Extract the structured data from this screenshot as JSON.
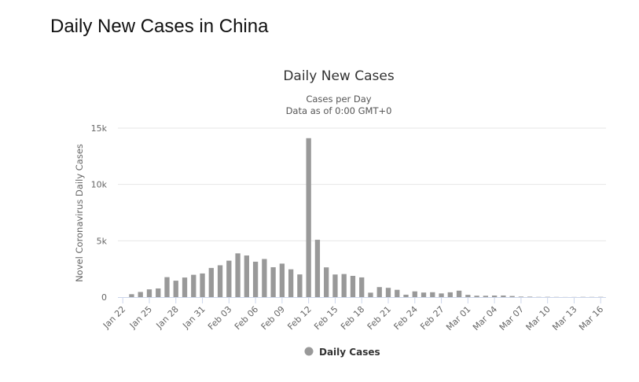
{
  "page": {
    "heading": "Daily New Cases in China"
  },
  "chart_data": {
    "type": "bar",
    "title": "Daily New Cases",
    "subtitle": [
      "Cases per Day",
      "Data as of 0:00 GMT+0"
    ],
    "xlabel": "",
    "ylabel": "Novel Coronavirus Daily Cases",
    "ylim": [
      0,
      15000
    ],
    "yticks": [
      0,
      5000,
      10000,
      15000
    ],
    "ytick_labels": [
      "0",
      "5k",
      "10k",
      "15k"
    ],
    "grid": true,
    "legend_position": "bottom-center",
    "bar_color": "#999999",
    "categories": [
      "Jan 22",
      "Jan 23",
      "Jan 24",
      "Jan 25",
      "Jan 26",
      "Jan 27",
      "Jan 28",
      "Jan 29",
      "Jan 30",
      "Jan 31",
      "Feb 01",
      "Feb 02",
      "Feb 03",
      "Feb 04",
      "Feb 05",
      "Feb 06",
      "Feb 07",
      "Feb 08",
      "Feb 09",
      "Feb 10",
      "Feb 11",
      "Feb 12",
      "Feb 13",
      "Feb 14",
      "Feb 15",
      "Feb 16",
      "Feb 17",
      "Feb 18",
      "Feb 19",
      "Feb 20",
      "Feb 21",
      "Feb 22",
      "Feb 23",
      "Feb 24",
      "Feb 25",
      "Feb 26",
      "Feb 27",
      "Feb 28",
      "Feb 29",
      "Mar 01",
      "Mar 02",
      "Mar 03",
      "Mar 04",
      "Mar 05",
      "Mar 06",
      "Mar 07",
      "Mar 08",
      "Mar 09",
      "Mar 10",
      "Mar 11",
      "Mar 12",
      "Mar 13",
      "Mar 14",
      "Mar 15",
      "Mar 16"
    ],
    "xtick_labels": [
      "Jan 22",
      "Jan 25",
      "Jan 28",
      "Jan 31",
      "Feb 03",
      "Feb 06",
      "Feb 09",
      "Feb 12",
      "Feb 15",
      "Feb 18",
      "Feb 21",
      "Feb 24",
      "Feb 27",
      "Mar 01",
      "Mar 04",
      "Mar 07",
      "Mar 10",
      "Mar 13",
      "Mar 16"
    ],
    "series": [
      {
        "name": "Daily Cases",
        "values": [
          0,
          259,
          457,
          688,
          769,
          1771,
          1459,
          1737,
          1981,
          2099,
          2589,
          2825,
          3235,
          3884,
          3694,
          3143,
          3385,
          2652,
          2973,
          2467,
          2015,
          14108,
          5090,
          2641,
          2008,
          2048,
          1886,
          1749,
          394,
          889,
          823,
          648,
          214,
          508,
          406,
          433,
          327,
          427,
          573,
          202,
          125,
          119,
          139,
          143,
          99,
          44,
          40,
          19,
          24,
          15,
          8,
          11,
          20,
          16,
          21
        ]
      }
    ]
  }
}
